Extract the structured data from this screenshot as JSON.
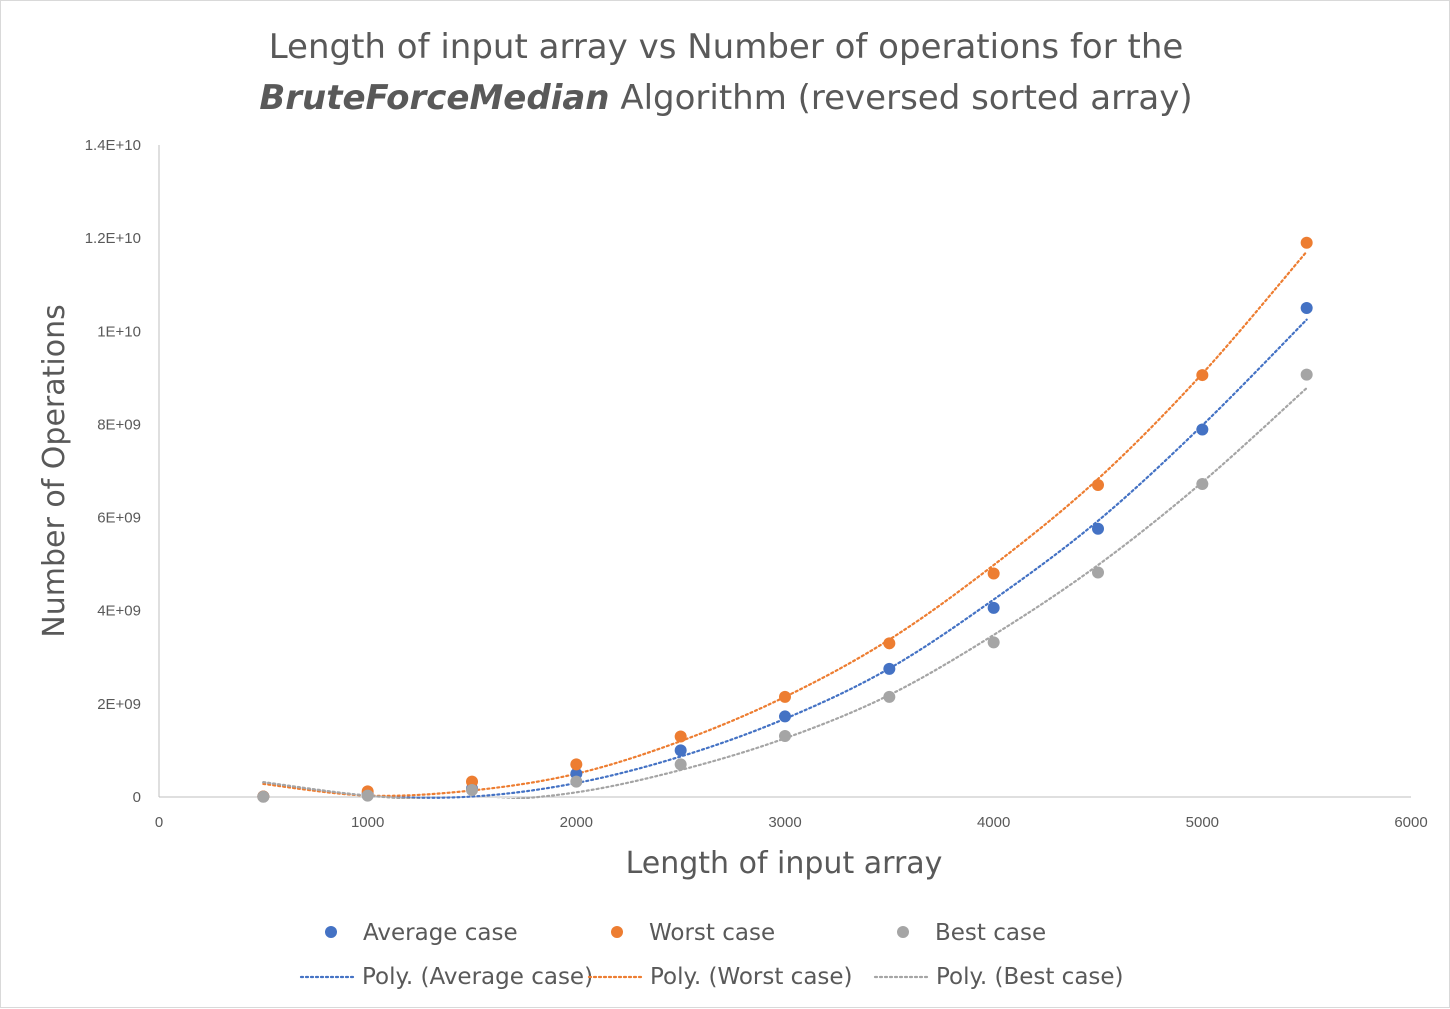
{
  "chart_data": {
    "type": "scatter",
    "title_line1": "Length of input array vs Number of operations for the",
    "title_line2_italic": "BruteForceMedian",
    "title_line2_rest": " Algorithm (reversed sorted array)",
    "xlabel": "Length of input array",
    "ylabel": "Number of Operations",
    "xlim": [
      0,
      6000
    ],
    "ylim": [
      0,
      14000000000
    ],
    "x_ticks": [
      0,
      1000,
      2000,
      3000,
      4000,
      5000,
      6000
    ],
    "x_tick_labels": [
      "0",
      "1000",
      "2000",
      "3000",
      "4000",
      "5000",
      "6000"
    ],
    "y_ticks": [
      0,
      2000000000,
      4000000000,
      6000000000,
      8000000000,
      10000000000,
      12000000000,
      14000000000
    ],
    "y_tick_labels": [
      "0",
      "2E+09",
      "4E+09",
      "6E+09",
      "8E+09",
      "1E+10",
      "1.2E+10",
      "1.4E+10"
    ],
    "grid": false,
    "legend_position": "bottom",
    "x": [
      500,
      1000,
      1500,
      2000,
      2500,
      3000,
      3500,
      4000,
      4500,
      5000,
      5500
    ],
    "series": [
      {
        "name": "Average case",
        "color": "#4472C4",
        "values": [
          10000000,
          70000000,
          180000000,
          500000000,
          1000000000,
          1730000000,
          2750000000,
          4060000000,
          5760000000,
          7890000000,
          10500000000
        ]
      },
      {
        "name": "Worst case",
        "color": "#ED7D31",
        "values": [
          10000000,
          120000000,
          330000000,
          700000000,
          1300000000,
          2150000000,
          3300000000,
          4800000000,
          6700000000,
          9060000000,
          11900000000
        ]
      },
      {
        "name": "Best case",
        "color": "#A5A5A5",
        "values": [
          5000000,
          30000000,
          150000000,
          330000000,
          700000000,
          1310000000,
          2150000000,
          3320000000,
          4820000000,
          6720000000,
          9070000000
        ]
      }
    ],
    "trendlines": [
      {
        "name": "Poly. (Average case)",
        "color": "#4472C4",
        "style": "dotted",
        "order": 2,
        "points": [
          [
            500,
            310000000
          ],
          [
            1000,
            30000000
          ],
          [
            1500,
            10000000
          ],
          [
            2000,
            300000000
          ],
          [
            2500,
            870000000
          ],
          [
            3000,
            1680000000
          ],
          [
            3500,
            2760000000
          ],
          [
            4000,
            4240000000
          ],
          [
            4500,
            5930000000
          ],
          [
            5000,
            7980000000
          ],
          [
            5500,
            10250000000
          ]
        ]
      },
      {
        "name": "Poly. (Worst case)",
        "color": "#ED7D31",
        "style": "dotted",
        "order": 2,
        "points": [
          [
            500,
            280000000
          ],
          [
            1000,
            30000000
          ],
          [
            1500,
            140000000
          ],
          [
            2000,
            500000000
          ],
          [
            2500,
            1200000000
          ],
          [
            3000,
            2150000000
          ],
          [
            3500,
            3380000000
          ],
          [
            4000,
            4980000000
          ],
          [
            4500,
            6830000000
          ],
          [
            5000,
            9090000000
          ],
          [
            5500,
            11710000000
          ]
        ]
      },
      {
        "name": "Poly. (Best case)",
        "color": "#A5A5A5",
        "style": "dotted",
        "order": 2,
        "points": [
          [
            500,
            320000000
          ],
          [
            1000,
            30000000
          ],
          [
            1500,
            -80000000
          ],
          [
            2000,
            100000000
          ],
          [
            2500,
            580000000
          ],
          [
            3000,
            1260000000
          ],
          [
            3500,
            2190000000
          ],
          [
            4000,
            3480000000
          ],
          [
            4500,
            4980000000
          ],
          [
            5000,
            6760000000
          ],
          [
            5500,
            8780000000
          ]
        ]
      }
    ]
  }
}
